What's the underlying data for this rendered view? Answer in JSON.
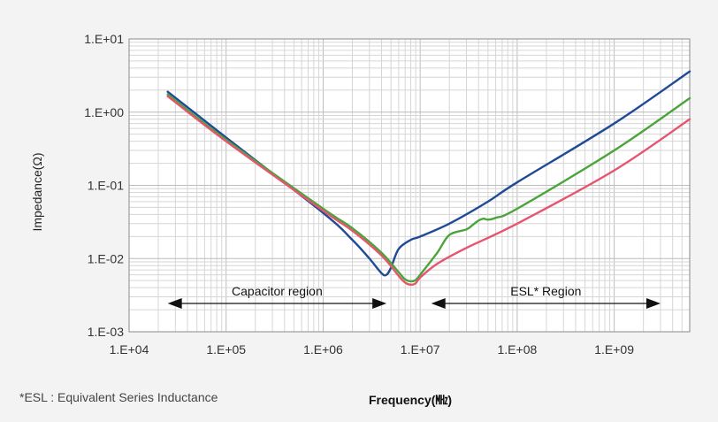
{
  "footnote": "*ESL : Equivalent Series Inductance",
  "chart_data": {
    "type": "line",
    "xlabel": "Frequency(㎒)",
    "ylabel": "Impedance(Ω)",
    "x_scale": "log",
    "y_scale": "log",
    "xlim": [
      10000.0,
      6000000000.0
    ],
    "ylim": [
      0.001,
      10
    ],
    "grid": true,
    "x_ticks": [
      "1.E+04",
      "1.E+05",
      "1.E+06",
      "1.E+07",
      "1.E+08",
      "1.E+09"
    ],
    "y_ticks": [
      "1.E+01",
      "1.E+00",
      "1.E-01",
      "1.E-02",
      "1.E-03"
    ],
    "annotations": [
      {
        "text": "Capacitor region",
        "x_from": 25000,
        "x_to": 4500000
      },
      {
        "text": "ESL* Region",
        "x_from": 13000000,
        "x_to": 3000000000
      }
    ],
    "colors": {
      "blue": "#1f4a96",
      "green": "#4aa43a",
      "red": "#e5566e",
      "grid_minor": "#d6d6d6",
      "grid_major": "#bcbcbc",
      "plot_bg": "#ffffff"
    },
    "series": [
      {
        "color": "#1f4a96",
        "x": [
          25000,
          100000,
          1000000,
          2000000,
          3000000,
          4000000,
          4500000,
          5000000,
          6000000,
          8000000,
          10000000,
          20000000,
          50000000,
          100000000,
          1000000000,
          6000000000
        ],
        "y": [
          1.9,
          0.45,
          0.042,
          0.018,
          0.01,
          0.0063,
          0.006,
          0.0075,
          0.0135,
          0.018,
          0.02,
          0.03,
          0.06,
          0.11,
          0.7,
          3.6
        ]
      },
      {
        "color": "#4aa43a",
        "x": [
          25000,
          100000,
          1000000,
          2000000,
          4000000,
          6000000,
          7000000,
          8000000,
          9000000,
          10000000,
          15000000,
          20000000,
          30000000,
          35000000,
          40000000,
          45000000,
          50000000,
          60000000,
          100000000,
          1000000000,
          6000000000
        ],
        "y": [
          1.75,
          0.42,
          0.048,
          0.026,
          0.012,
          0.0065,
          0.0052,
          0.0049,
          0.0051,
          0.006,
          0.012,
          0.021,
          0.025,
          0.029,
          0.033,
          0.035,
          0.034,
          0.036,
          0.048,
          0.3,
          1.55
        ]
      },
      {
        "color": "#e5566e",
        "x": [
          25000,
          100000,
          1000000,
          2000000,
          4000000,
          6000000,
          7000000,
          8000000,
          9000000,
          10000000,
          15000000,
          30000000,
          100000000,
          1000000000,
          6000000000
        ],
        "y": [
          1.65,
          0.4,
          0.045,
          0.024,
          0.011,
          0.0058,
          0.0047,
          0.0044,
          0.0046,
          0.0055,
          0.0085,
          0.014,
          0.03,
          0.16,
          0.8
        ]
      }
    ]
  }
}
